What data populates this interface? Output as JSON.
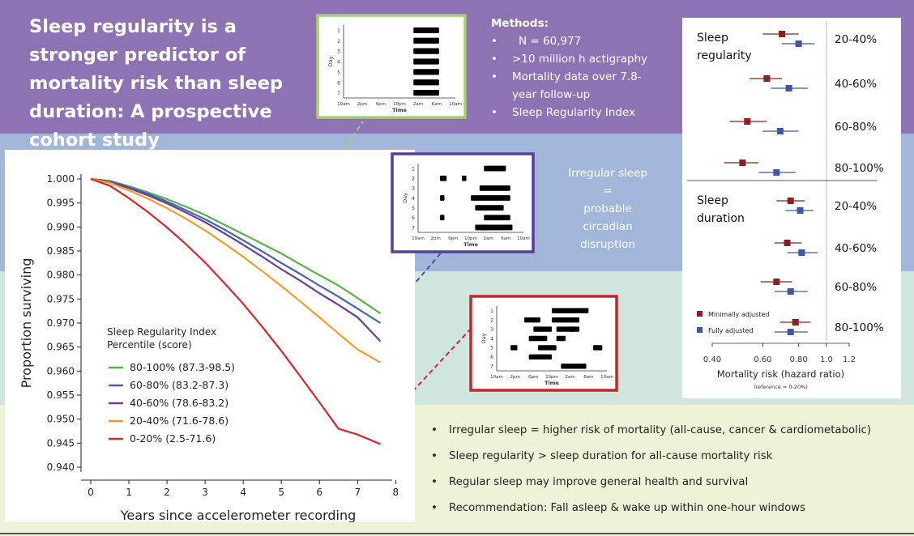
{
  "title": "Sleep regularity is a stronger predictor of mortality risk than sleep duration: A prospective cohort study",
  "methods": {
    "heading": "Methods:",
    "items": [
      "N = 60,977",
      ">10 million h actigraphy",
      "Mortality data over 7.8-year follow-up",
      "Sleep Regularity Index"
    ]
  },
  "circadian_note": [
    "Irregular sleep",
    "=",
    "probable",
    "circadian",
    "disruption"
  ],
  "findings": [
    "Irregular sleep = higher risk of mortality (all-cause, cancer & cardiometabolic)",
    "Sleep regularity > sleep duration for all-cause mortality risk",
    "Regular sleep may improve general health and survival",
    "Recommendation: Fall asleep & wake up within one-hour windows"
  ],
  "colors": {
    "purple_band": "#8d73b3",
    "blue_band": "#a2b6d9",
    "teal_band": "#cfe5de",
    "yellow_band": "#eef2d6",
    "pct_80_100": "#5ab04a",
    "pct_60_80": "#4266ad",
    "pct_40_60": "#6a3e9a",
    "pct_20_40": "#f39c28",
    "pct_0_20": "#d8262b",
    "minimally_adjusted": "#8b1f1f",
    "fully_adjusted": "#3e55a8"
  },
  "chart_data": [
    {
      "type": "line",
      "xlabel": "Years since accelerometer recording",
      "ylabel": "Proportion surviving",
      "xlim": [
        0,
        8
      ],
      "ylim": [
        0.94,
        1.0
      ],
      "xticks": [
        0,
        1,
        2,
        3,
        4,
        5,
        6,
        7,
        8
      ],
      "yticks": [
        "0.940",
        "0.945",
        "0.950",
        "0.955",
        "0.960",
        "0.965",
        "0.970",
        "0.975",
        "0.980",
        "0.985",
        "0.990",
        "0.995",
        "1.000"
      ],
      "legend_title": [
        "Sleep Regularity Index",
        "Percentile (score)"
      ],
      "legend_position": "bottom-left",
      "grid": false,
      "x": [
        0,
        0.5,
        1,
        1.5,
        2,
        2.5,
        3,
        3.5,
        4,
        4.5,
        5,
        5.5,
        6,
        6.5,
        7,
        7.6
      ],
      "series": [
        {
          "name": "80-100% (87.3-98.5)",
          "color": "#5ab04a",
          "values": [
            1.0,
            0.9996,
            0.9985,
            0.9972,
            0.9958,
            0.9942,
            0.9925,
            0.9905,
            0.9885,
            0.9865,
            0.9845,
            0.9822,
            0.98,
            0.9778,
            0.9752,
            0.972
          ]
        },
        {
          "name": "60-80% (83.2-87.3)",
          "color": "#4266ad",
          "values": [
            1.0,
            0.9995,
            0.9983,
            0.9969,
            0.9953,
            0.9935,
            0.9916,
            0.9895,
            0.9872,
            0.9849,
            0.9825,
            0.9802,
            0.9778,
            0.9755,
            0.973,
            0.97
          ]
        },
        {
          "name": "40-60% (78.6-83.2)",
          "color": "#6a3e9a",
          "values": [
            1.0,
            0.9994,
            0.9981,
            0.9966,
            0.9949,
            0.993,
            0.991,
            0.9887,
            0.9863,
            0.9838,
            0.9812,
            0.9788,
            0.9762,
            0.9738,
            0.9712,
            0.9662
          ]
        },
        {
          "name": "20-40% (71.6-78.6)",
          "color": "#f39c28",
          "values": [
            1.0,
            0.9992,
            0.9976,
            0.9959,
            0.9939,
            0.9917,
            0.9893,
            0.9866,
            0.9838,
            0.9808,
            0.9777,
            0.9745,
            0.9712,
            0.9678,
            0.9645,
            0.9618
          ]
        },
        {
          "name": "0-20% (2.5-71.6)",
          "color": "#d8262b",
          "values": [
            1.0,
            0.9986,
            0.996,
            0.9931,
            0.9899,
            0.9864,
            0.9826,
            0.9784,
            0.974,
            0.9692,
            0.9642,
            0.9589,
            0.9535,
            0.948,
            0.9468,
            0.9448
          ]
        }
      ]
    },
    {
      "type": "scatter",
      "subtype": "forest-plot",
      "xlabel": "Mortality risk (hazard ratio)",
      "xnote": "(reference = 0-20%)",
      "x_scale": "log",
      "xticks": [
        "0.40",
        "0.60",
        "0.80",
        "1.0",
        "1.2"
      ],
      "reference_line": 1.0,
      "legend": [
        "Minimally adjusted",
        "Fully adjusted"
      ],
      "legend_position": "bottom-left",
      "groups": [
        {
          "label": "Sleep regularity",
          "rows": [
            {
              "label": "20-40%",
              "minimal": [
                0.7,
                0.6,
                0.8
              ],
              "full": [
                0.8,
                0.7,
                0.91
              ]
            },
            {
              "label": "40-60%",
              "minimal": [
                0.62,
                0.54,
                0.7
              ],
              "full": [
                0.74,
                0.64,
                0.86
              ]
            },
            {
              "label": "60-80%",
              "minimal": [
                0.53,
                0.46,
                0.62
              ],
              "full": [
                0.69,
                0.6,
                0.8
              ]
            },
            {
              "label": "80-100%",
              "minimal": [
                0.51,
                0.44,
                0.58
              ],
              "full": [
                0.67,
                0.58,
                0.78
              ]
            }
          ]
        },
        {
          "label": "Sleep duration",
          "rows": [
            {
              "label": "20-40%",
              "minimal": [
                0.75,
                0.67,
                0.84
              ],
              "full": [
                0.81,
                0.72,
                0.9
              ]
            },
            {
              "label": "40-60%",
              "minimal": [
                0.73,
                0.66,
                0.82
              ],
              "full": [
                0.82,
                0.73,
                0.93
              ]
            },
            {
              "label": "60-80%",
              "minimal": [
                0.67,
                0.59,
                0.76
              ],
              "full": [
                0.75,
                0.66,
                0.86
              ]
            },
            {
              "label": "80-100%",
              "minimal": [
                0.78,
                0.69,
                0.88
              ],
              "full": [
                0.75,
                0.66,
                0.86
              ]
            }
          ]
        }
      ]
    },
    {
      "type": "bar",
      "subtype": "actogram",
      "ylabel": "Day",
      "xlabel": "Time",
      "xticks": [
        "10am",
        "2pm",
        "6pm",
        "10pm",
        "2am",
        "6am",
        "10am"
      ],
      "days": [
        1,
        2,
        3,
        4,
        5,
        6,
        7
      ],
      "sleep_hours": [
        [
          15,
          20.5
        ],
        [
          15,
          20.5
        ],
        [
          15,
          20.5
        ],
        [
          15,
          20.5
        ],
        [
          15,
          20.5
        ],
        [
          15,
          20.5
        ],
        [
          15,
          20.5
        ]
      ]
    },
    {
      "type": "bar",
      "subtype": "actogram",
      "ylabel": "Day",
      "xlabel": "Time",
      "xticks": [
        "10am",
        "2pm",
        "6pm",
        "10pm",
        "2am",
        "6am",
        "10am"
      ],
      "days": [
        1,
        2,
        3,
        4,
        5,
        6,
        7
      ],
      "sleep_hours": [
        [
          15,
          20
        ],
        [
          5,
          6.5
        ],
        [
          10,
          11
        ],
        [
          14,
          21
        ],
        [
          5,
          6
        ],
        [
          12,
          21
        ],
        [
          13,
          19.5
        ],
        [
          5,
          6
        ],
        [
          15,
          21
        ],
        [
          13,
          16
        ],
        [
          14,
          21.5
        ]
      ]
    },
    {
      "type": "bar",
      "subtype": "actogram",
      "ylabel": "Day",
      "xlabel": "Time",
      "xticks": [
        "10am",
        "2pm",
        "6pm",
        "10pm",
        "2am",
        "6am",
        "10am"
      ],
      "days": [
        1,
        2,
        3,
        4,
        5,
        6,
        7
      ],
      "sleep_hours": [
        [
          12,
          20
        ],
        [
          13,
          19
        ],
        [
          12,
          18
        ],
        [
          6,
          9.5
        ],
        [
          13,
          17
        ],
        [
          8,
          12
        ],
        [
          16,
          18
        ],
        [
          7,
          11
        ],
        [
          13,
          15
        ],
        [
          3,
          4.5
        ],
        [
          9,
          13
        ],
        [
          21,
          23
        ],
        [
          7,
          12
        ],
        [
          14,
          19.5
        ]
      ]
    }
  ]
}
